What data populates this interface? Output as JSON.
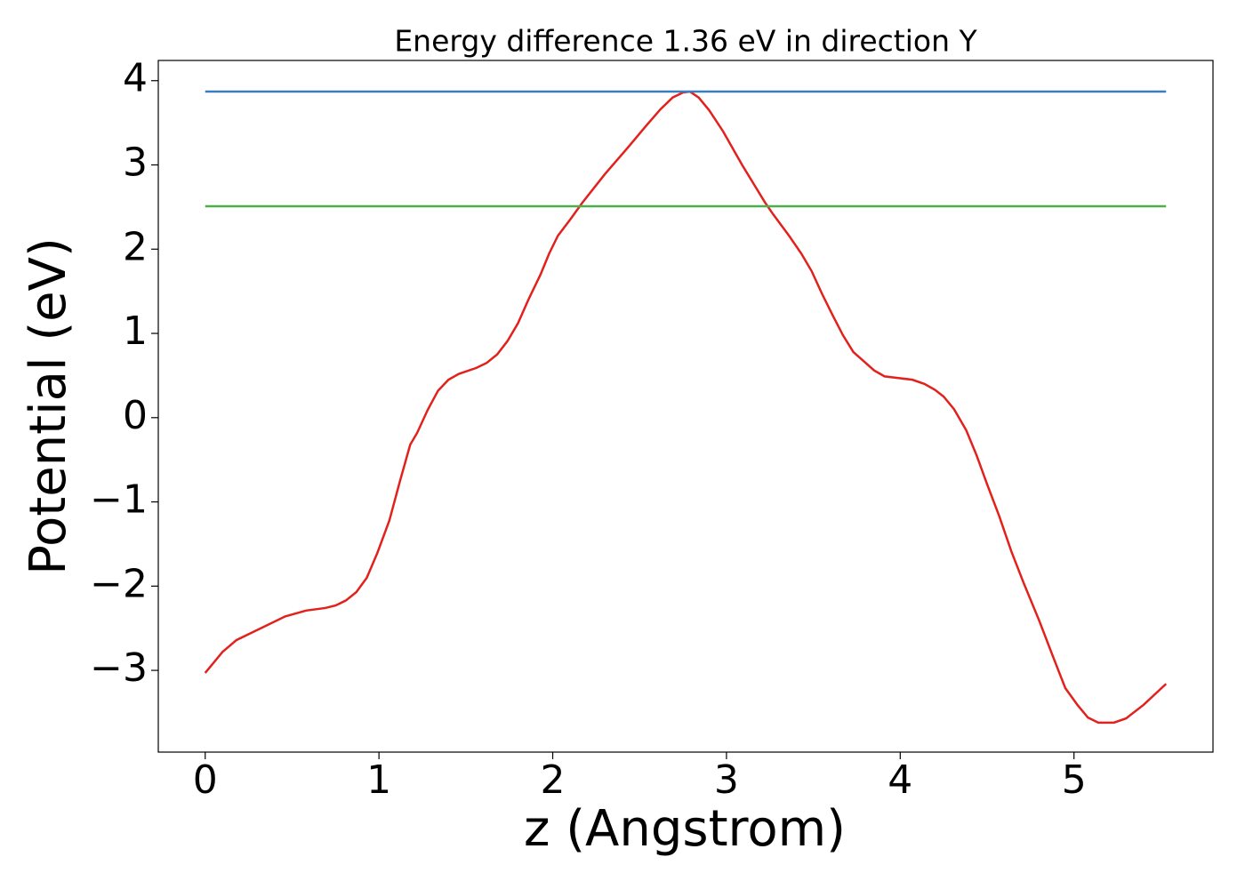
{
  "chart_data": {
    "type": "line",
    "title": "Energy difference 1.36 eV in direction Y",
    "xlabel": "z (Angstrom)",
    "ylabel": "Potential (eV)",
    "xlim": [
      -0.27,
      5.8
    ],
    "ylim": [
      -3.97,
      4.24
    ],
    "xticks": [
      0,
      1,
      2,
      3,
      4,
      5
    ],
    "yticks": [
      {
        "value": -3,
        "label": "−3"
      },
      {
        "value": -2,
        "label": "−2"
      },
      {
        "value": -1,
        "label": "−1"
      },
      0,
      1,
      2,
      3,
      4
    ],
    "grid": false,
    "series": [
      {
        "color": "#e3211c",
        "x": [
          0,
          0.1,
          0.18,
          0.28,
          0.46,
          0.58,
          0.69,
          0.75,
          0.81,
          0.87,
          0.93,
          0.99,
          1.06,
          1.12,
          1.18,
          1.22,
          1.28,
          1.34,
          1.4,
          1.46,
          1.56,
          1.62,
          1.68,
          1.74,
          1.8,
          1.86,
          1.93,
          1.98,
          2.03,
          2.1,
          2.17,
          2.3,
          2.43,
          2.54,
          2.62,
          2.69,
          2.75,
          2.79,
          2.84,
          2.9,
          2.98,
          3.09,
          3.22,
          3.27,
          3.36,
          3.43,
          3.49,
          3.55,
          3.61,
          3.67,
          3.73,
          3.79,
          3.85,
          3.91,
          3.99,
          4.07,
          4.14,
          4.2,
          4.25,
          4.31,
          4.38,
          4.44,
          4.5,
          4.57,
          4.64,
          4.71,
          4.8,
          4.88,
          4.95,
          5.02,
          5.08,
          5.14,
          5.23,
          5.3,
          5.4,
          5.53
        ],
        "values": [
          -3.03,
          -2.78,
          -2.64,
          -2.54,
          -2.36,
          -2.29,
          -2.26,
          -2.23,
          -2.17,
          -2.07,
          -1.9,
          -1.61,
          -1.22,
          -0.76,
          -0.32,
          -0.18,
          0.09,
          0.32,
          0.45,
          0.52,
          0.59,
          0.65,
          0.75,
          0.91,
          1.12,
          1.4,
          1.7,
          1.95,
          2.16,
          2.35,
          2.55,
          2.89,
          3.2,
          3.47,
          3.66,
          3.8,
          3.86,
          3.87,
          3.8,
          3.65,
          3.4,
          3.0,
          2.56,
          2.41,
          2.16,
          1.95,
          1.74,
          1.47,
          1.22,
          0.98,
          0.78,
          0.67,
          0.56,
          0.49,
          0.47,
          0.45,
          0.4,
          0.33,
          0.25,
          0.1,
          -0.15,
          -0.45,
          -0.79,
          -1.17,
          -1.59,
          -1.96,
          -2.41,
          -2.84,
          -3.21,
          -3.41,
          -3.56,
          -3.62,
          -3.62,
          -3.57,
          -3.41,
          -3.16
        ]
      },
      {
        "color": "#3a7ebf",
        "x": [
          0,
          5.53
        ],
        "values": [
          3.87,
          3.87
        ]
      },
      {
        "color": "#4daf4a",
        "x": [
          0,
          5.53
        ],
        "values": [
          2.51,
          2.51
        ]
      }
    ]
  }
}
